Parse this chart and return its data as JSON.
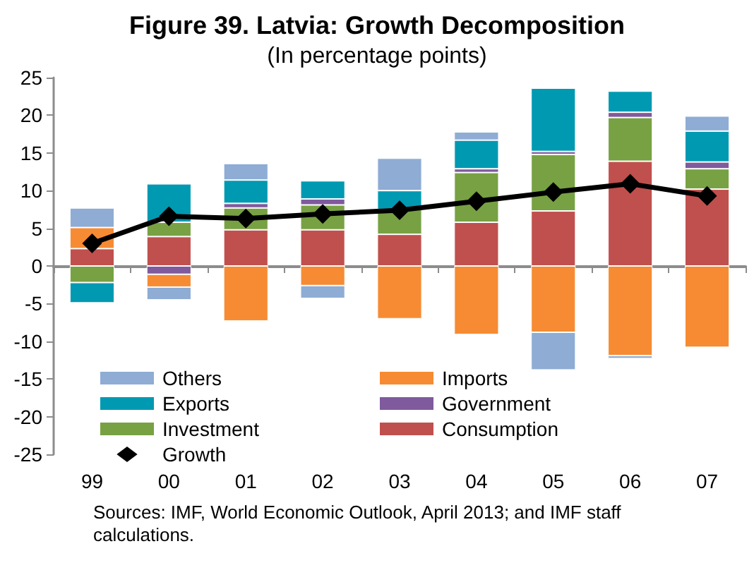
{
  "chart_data": {
    "type": "bar",
    "stacked": true,
    "title": "Figure 39. Latvia: Growth Decomposition",
    "subtitle": "(In percentage points)",
    "categories": [
      "99",
      "00",
      "01",
      "02",
      "03",
      "04",
      "05",
      "06",
      "07"
    ],
    "series": [
      {
        "name": "Consumption",
        "color": "#c0504d",
        "values": [
          2.3,
          3.9,
          4.8,
          4.8,
          4.2,
          5.8,
          7.3,
          13.9,
          10.2
        ]
      },
      {
        "name": "Investment",
        "color": "#77a143",
        "values": [
          -2.2,
          1.9,
          2.9,
          3.3,
          3.3,
          6.6,
          7.5,
          5.8,
          2.7
        ]
      },
      {
        "name": "Government",
        "color": "#7f5a9c",
        "values": [
          null,
          -1.1,
          0.6,
          0.8,
          null,
          0.5,
          0.4,
          0.7,
          0.9
        ]
      },
      {
        "name": "Imports",
        "color": "#f68b33",
        "values": [
          2.8,
          -1.7,
          -7.3,
          -2.6,
          -7.0,
          -9.1,
          -8.8,
          -11.9,
          -10.8
        ]
      },
      {
        "name": "Exports",
        "color": "#0099b2",
        "values": [
          -2.7,
          5.1,
          3.1,
          2.4,
          2.5,
          3.8,
          8.4,
          2.8,
          4.1
        ]
      },
      {
        "name": "Others",
        "color": "#8eacd4",
        "values": [
          2.6,
          -1.7,
          2.2,
          -1.7,
          4.3,
          1.1,
          -5.0,
          -0.4,
          2.0
        ]
      },
      {
        "name": "Growth",
        "type": "line",
        "color": "#000000",
        "marker": "diamond",
        "values": [
          3.0,
          6.6,
          6.3,
          6.9,
          7.4,
          8.6,
          9.8,
          10.9,
          9.3
        ]
      }
    ],
    "ylim": [
      -25,
      25
    ],
    "yticks": [
      -25,
      -20,
      -15,
      -10,
      -5,
      0,
      5,
      10,
      15,
      20,
      25
    ],
    "legend": "bottom left",
    "annotations": [
      "Sources: IMF, World Economic Outlook, April 2013; and IMF staff calculations."
    ]
  }
}
